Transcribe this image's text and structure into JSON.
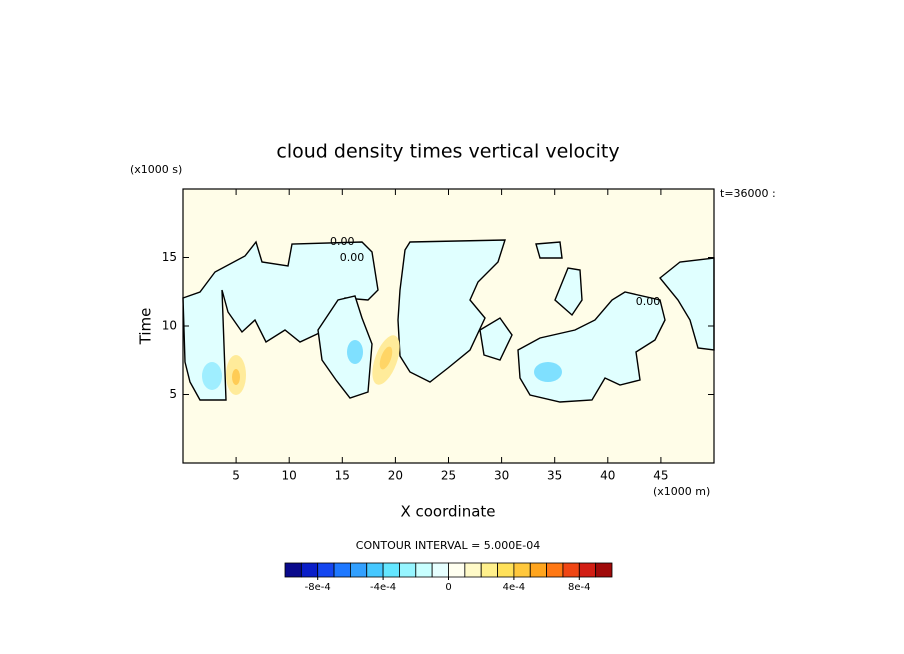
{
  "chart_data": {
    "type": "contour",
    "title": "cloud density times vertical velocity",
    "xlabel": "X coordinate",
    "ylabel": "Time",
    "x_unit_label": "(x1000 m)",
    "y_unit_label": "(x1000 s)",
    "time_label": "t=36000 :",
    "xlim": [
      0,
      50
    ],
    "xticks": [
      5,
      10,
      15,
      20,
      25,
      30,
      35,
      40,
      45
    ],
    "ylim": [
      0,
      20
    ],
    "yticks": [
      5,
      10,
      15
    ],
    "contour_labels": [
      "0.00",
      "0.00",
      "0.00"
    ],
    "contour_interval_label": "CONTOUR INTERVAL = 5.000E-04",
    "colorbar": {
      "clim": [
        -0.001,
        0.001
      ],
      "colors": [
        "#0a0a8c",
        "#0a1ec8",
        "#1446f0",
        "#1e78ff",
        "#32a0ff",
        "#46c8ff",
        "#64e6ff",
        "#96f5ff",
        "#c8ffff",
        "#e6ffff",
        "#fffff0",
        "#fffac8",
        "#fff08c",
        "#ffe15a",
        "#ffc83c",
        "#ffa51e",
        "#ff7814",
        "#f04614",
        "#d21e14",
        "#a00a0a"
      ],
      "ticks": [
        {
          "value": -0.0008,
          "label": "-8e-4"
        },
        {
          "value": -0.0004,
          "label": "-4e-4"
        },
        0,
        {
          "value": 0.0004,
          "label": "4e-4"
        },
        {
          "value": 0.0008,
          "label": "8e-4"
        }
      ]
    }
  }
}
